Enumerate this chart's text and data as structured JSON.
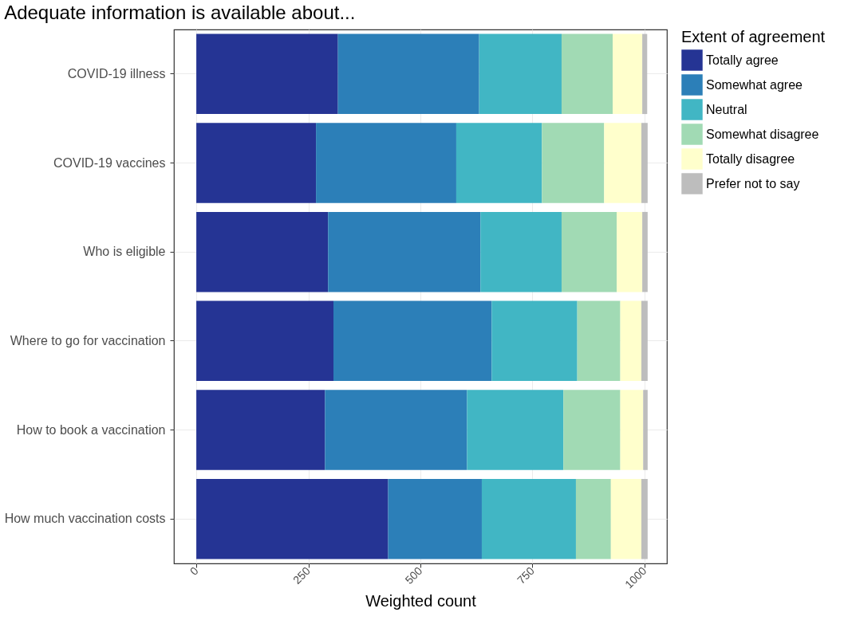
{
  "chart_data": {
    "type": "bar",
    "orientation": "horizontal",
    "stacked": true,
    "title": "Adequate information is available about...",
    "xlabel": "Weighted count",
    "legend_title": "Extent of agreement",
    "categories": [
      "COVID-19 illness",
      "COVID-19 vaccines",
      "Who is eligible",
      "Where to go for vaccination",
      "How to book a vaccination",
      "How much vaccination costs"
    ],
    "series": [
      {
        "name": "Totally agree",
        "color": "#253494",
        "values": [
          316,
          267,
          294,
          306,
          287,
          428
        ]
      },
      {
        "name": "Somewhat agree",
        "color": "#2c7fb8",
        "values": [
          315,
          313,
          340,
          353,
          317,
          209
        ]
      },
      {
        "name": "Neutral",
        "color": "#41b6c4",
        "values": [
          184,
          191,
          181,
          191,
          215,
          210
        ]
      },
      {
        "name": "Somewhat disagree",
        "color": "#a1dab4",
        "values": [
          114,
          139,
          123,
          96,
          127,
          78
        ]
      },
      {
        "name": "Totally disagree",
        "color": "#ffffcc",
        "values": [
          66,
          83,
          57,
          47,
          51,
          68
        ]
      },
      {
        "name": "Prefer not to say",
        "color": "#bdbdbd",
        "values": [
          11,
          14,
          12,
          14,
          10,
          14
        ]
      }
    ],
    "xlim": [
      -50,
      1050
    ],
    "xticks": [
      0,
      250,
      500,
      750,
      1000
    ],
    "grid": true,
    "legend": "right"
  }
}
